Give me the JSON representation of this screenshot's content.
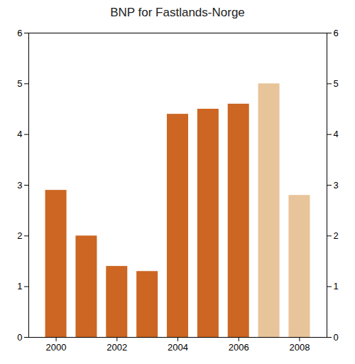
{
  "chart_data": {
    "type": "bar",
    "title": "BNP for Fastlands-Norge",
    "x": [
      2000,
      2001,
      2002,
      2003,
      2004,
      2005,
      2006,
      2007,
      2008
    ],
    "values": [
      2.9,
      2.0,
      1.4,
      1.3,
      4.4,
      4.5,
      4.6,
      5.0,
      2.8
    ],
    "colors": [
      "#cc6622",
      "#cc6622",
      "#cc6622",
      "#cc6622",
      "#cc6622",
      "#cc6622",
      "#cc6622",
      "#e8c49a",
      "#e8c49a"
    ],
    "xlim": [
      1999.1,
      2008.9
    ],
    "xticks": [
      2000,
      2002,
      2004,
      2006,
      2008
    ],
    "ylim": [
      0,
      6
    ],
    "yticks": [
      0,
      1,
      2,
      3,
      4,
      5,
      6
    ],
    "y2lim": [
      0,
      6
    ],
    "y2ticks": [
      0,
      1,
      2,
      3,
      4,
      5,
      6
    ],
    "grid": false
  }
}
